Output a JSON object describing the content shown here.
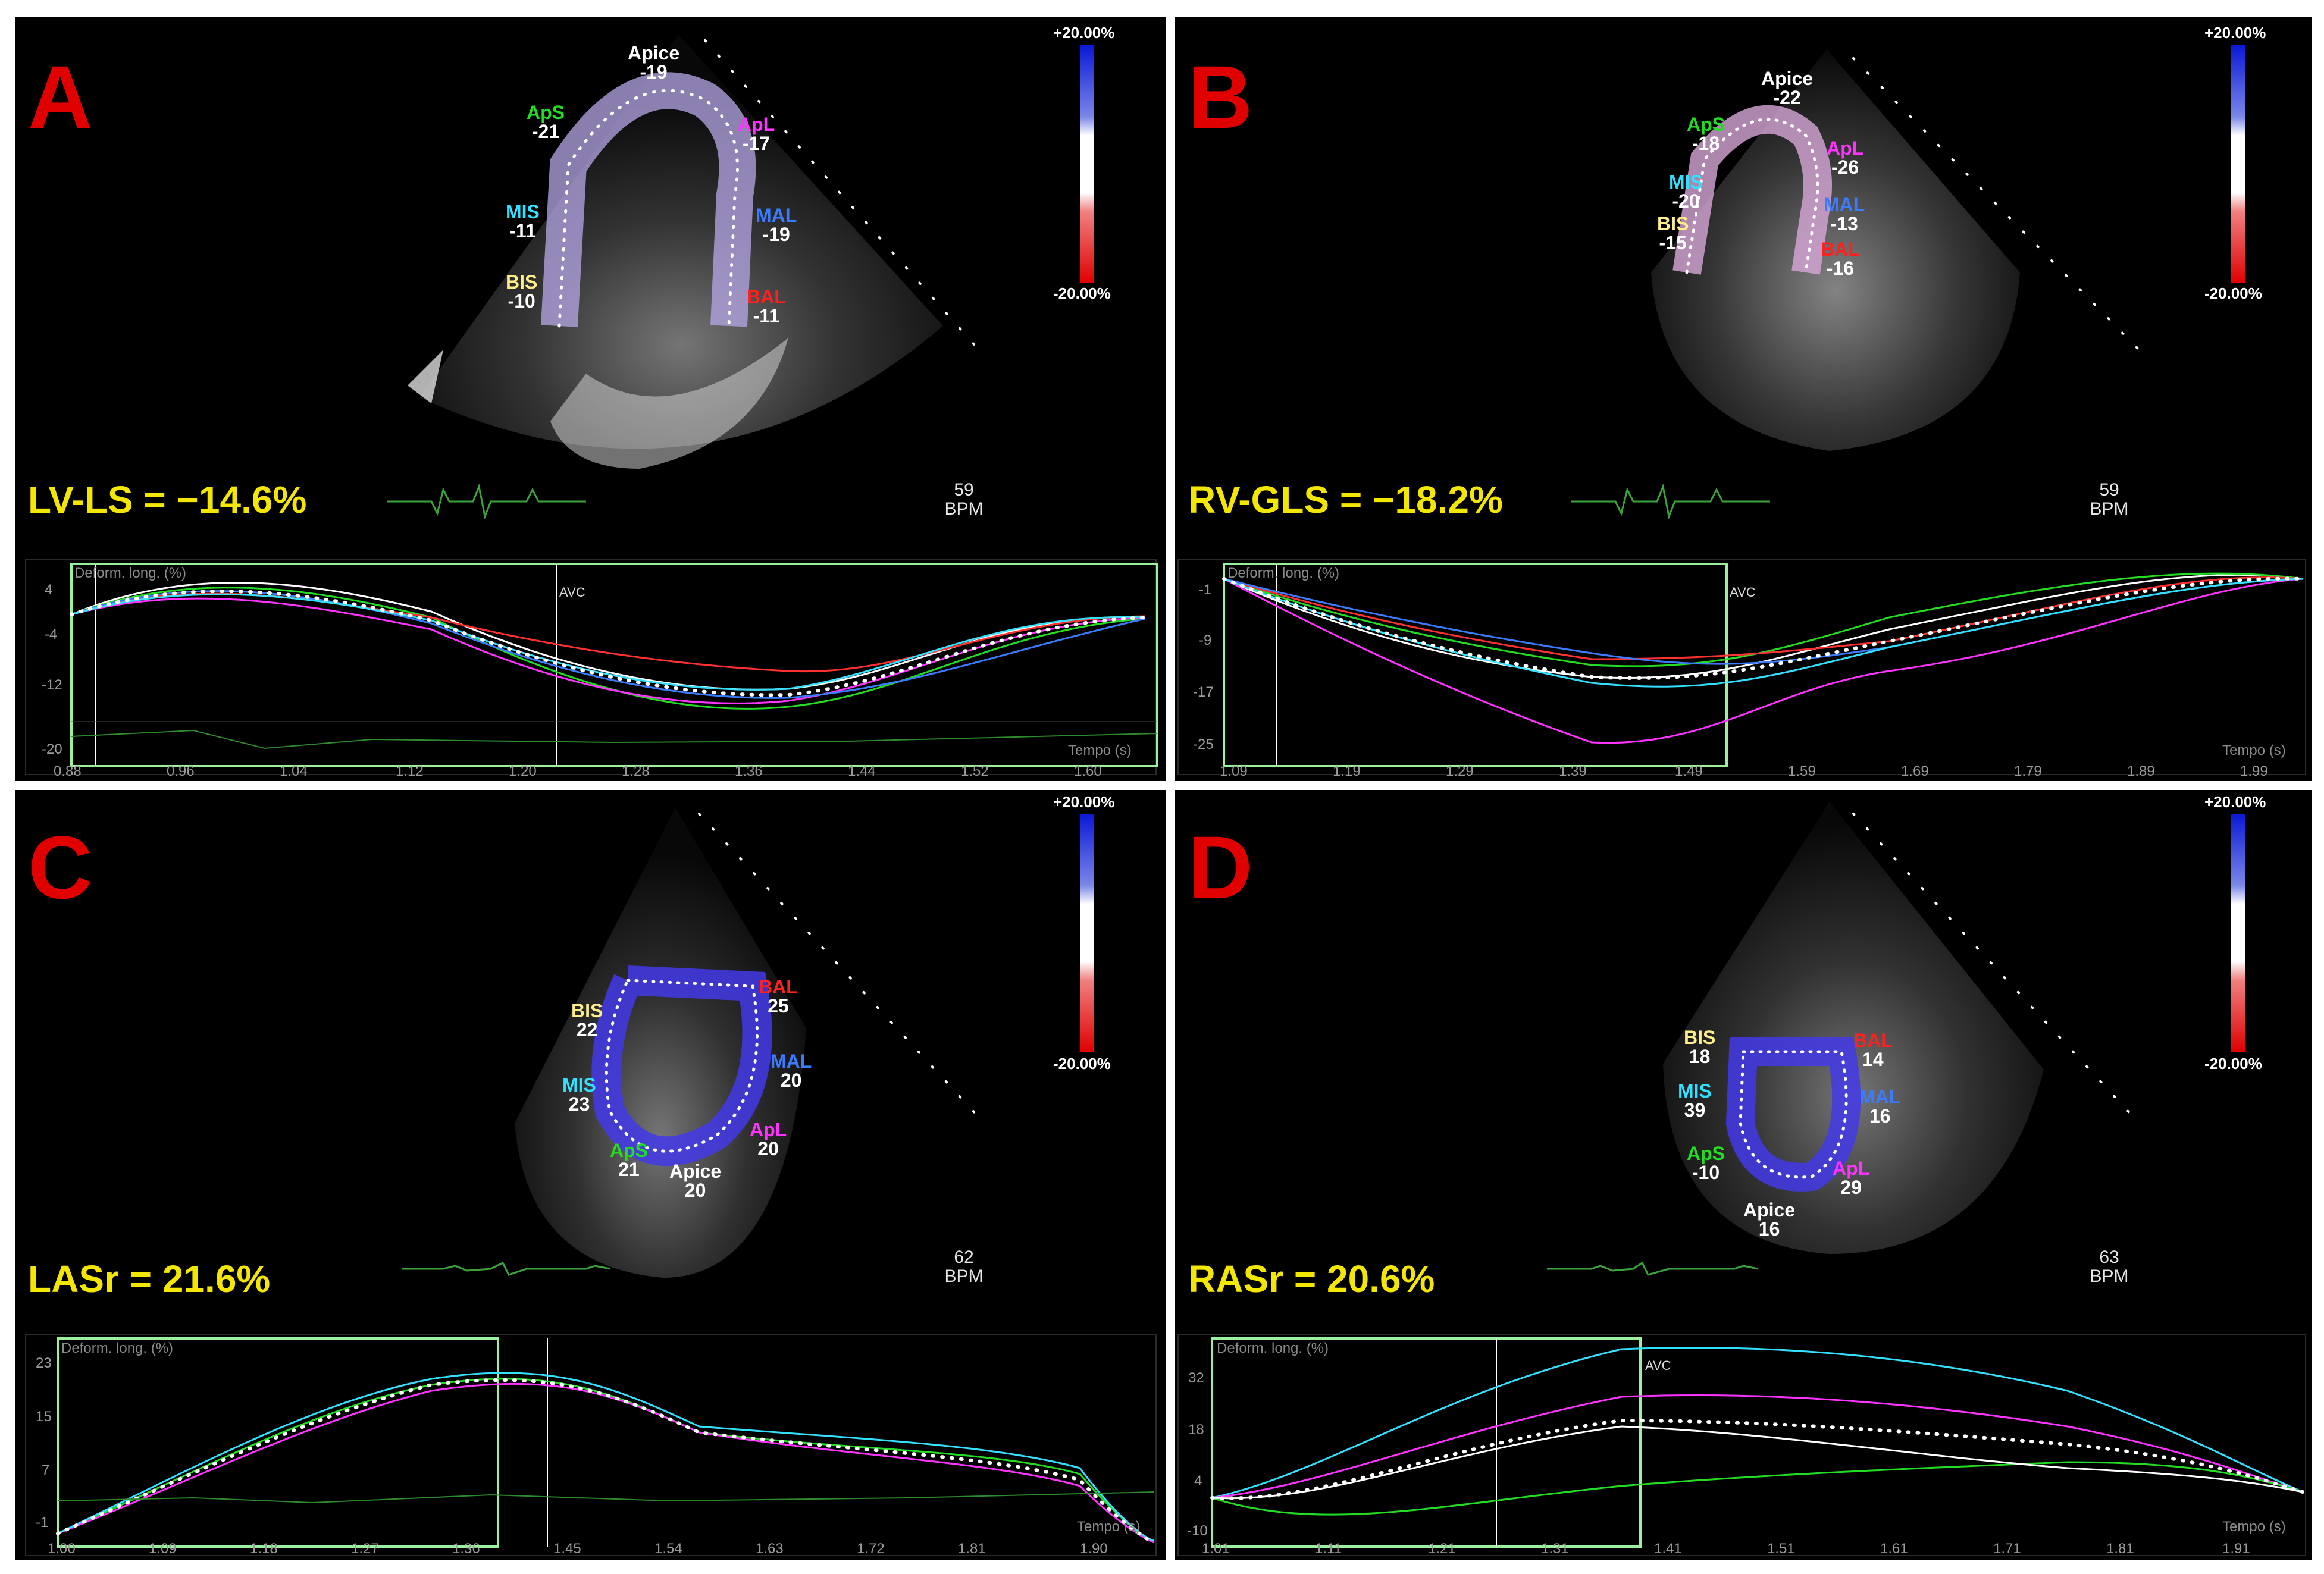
{
  "colorbar": {
    "top": "+20.00%",
    "bottom": "-20.00%"
  },
  "panels": [
    {
      "letter": "A",
      "metric": "LV-LS = −14.6%",
      "bpm_value": "59",
      "bpm_unit": "BPM",
      "segments": [
        {
          "name": "Apice",
          "value": "-19",
          "color": "#ffffff"
        },
        {
          "name": "ApS",
          "value": "-21",
          "color": "#22dd22"
        },
        {
          "name": "ApL",
          "value": "-17",
          "color": "#ff33ff"
        },
        {
          "name": "MIS",
          "value": "-11",
          "color": "#33e0ff"
        },
        {
          "name": "MAL",
          "value": "-19",
          "color": "#3b7bff"
        },
        {
          "name": "BIS",
          "value": "-10",
          "color": "#ffee88"
        },
        {
          "name": "BAL",
          "value": "-11",
          "color": "#ff2020"
        }
      ],
      "graph": {
        "title": "Deform. long. (%)",
        "unit": "Tempo (s)",
        "avc": "AVC",
        "yticks": [
          "4",
          "-4",
          "-12",
          "-20"
        ],
        "xticks": [
          "0.88",
          "0.96",
          "1.04",
          "1.12",
          "1.20",
          "1.28",
          "1.36",
          "1.44",
          "1.52",
          "1.60"
        ]
      }
    },
    {
      "letter": "B",
      "metric": "RV-GLS = −18.2%",
      "bpm_value": "59",
      "bpm_unit": "BPM",
      "segments": [
        {
          "name": "Apice",
          "value": "-22",
          "color": "#ffffff"
        },
        {
          "name": "ApS",
          "value": "-18",
          "color": "#22dd22"
        },
        {
          "name": "ApL",
          "value": "-26",
          "color": "#ff33ff"
        },
        {
          "name": "MIS",
          "value": "-20",
          "color": "#33e0ff"
        },
        {
          "name": "MAL",
          "value": "-13",
          "color": "#3b7bff"
        },
        {
          "name": "BIS",
          "value": "-15",
          "color": "#ffee88"
        },
        {
          "name": "BAL",
          "value": "-16",
          "color": "#ff2020"
        }
      ],
      "graph": {
        "title": "Deform. long. (%)",
        "unit": "Tempo (s)",
        "avc": "AVC",
        "yticks": [
          "-1",
          "-9",
          "-17",
          "-25"
        ],
        "xticks": [
          "1.09",
          "1.19",
          "1.29",
          "1.39",
          "1.49",
          "1.59",
          "1.69",
          "1.79",
          "1.89",
          "1.99"
        ]
      }
    },
    {
      "letter": "C",
      "metric": "LASr = 21.6%",
      "bpm_value": "62",
      "bpm_unit": "BPM",
      "segments": [
        {
          "name": "BIS",
          "value": "22",
          "color": "#ffee88"
        },
        {
          "name": "BAL",
          "value": "25",
          "color": "#ff2020"
        },
        {
          "name": "MIS",
          "value": "23",
          "color": "#33e0ff"
        },
        {
          "name": "MAL",
          "value": "20",
          "color": "#3b7bff"
        },
        {
          "name": "ApS",
          "value": "21",
          "color": "#22dd22"
        },
        {
          "name": "Apice",
          "value": "20",
          "color": "#ffffff"
        },
        {
          "name": "ApL",
          "value": "20",
          "color": "#ff33ff"
        }
      ],
      "graph": {
        "title": "Deform. long. (%)",
        "unit": "Tempo (s)",
        "avc": "",
        "yticks": [
          "23",
          "15",
          "7",
          "-1"
        ],
        "xticks": [
          "1.00",
          "1.09",
          "1.18",
          "1.27",
          "1.36",
          "1.45",
          "1.54",
          "1.63",
          "1.72",
          "1.81",
          "1.90"
        ]
      }
    },
    {
      "letter": "D",
      "metric": "RASr = 20.6%",
      "bpm_value": "63",
      "bpm_unit": "BPM",
      "segments": [
        {
          "name": "BIS",
          "value": "18",
          "color": "#ffee88"
        },
        {
          "name": "BAL",
          "value": "14",
          "color": "#ff2020"
        },
        {
          "name": "MIS",
          "value": "39",
          "color": "#33e0ff"
        },
        {
          "name": "MAL",
          "value": "16",
          "color": "#3b7bff"
        },
        {
          "name": "ApS",
          "value": "-10",
          "color": "#22dd22"
        },
        {
          "name": "ApL",
          "value": "29",
          "color": "#ff33ff"
        },
        {
          "name": "Apice",
          "value": "16",
          "color": "#ffffff"
        }
      ],
      "graph": {
        "title": "Deform. long. (%)",
        "unit": "Tempo (s)",
        "avc": "AVC",
        "yticks": [
          "32",
          "18",
          "4",
          "-10"
        ],
        "xticks": [
          "1.01",
          "1.11",
          "1.21",
          "1.31",
          "1.41",
          "1.51",
          "1.61",
          "1.71",
          "1.81",
          "1.91"
        ]
      }
    }
  ]
}
